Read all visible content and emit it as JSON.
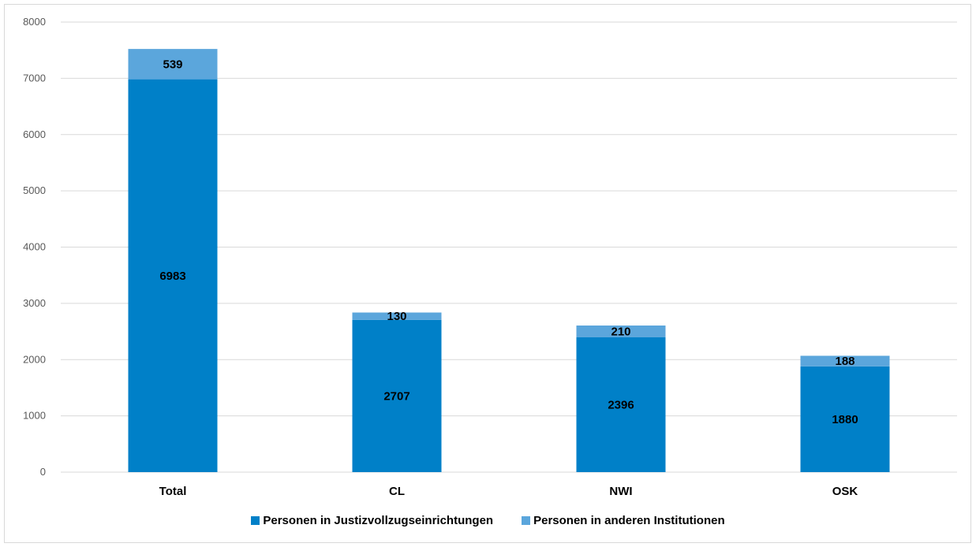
{
  "chart_data": {
    "type": "bar",
    "stacked": true,
    "categories": [
      "Total",
      "CL",
      "NWI",
      "OSK"
    ],
    "series": [
      {
        "name": "Personen in Justizvollzugseinrichtungen",
        "values": [
          6983,
          2707,
          2396,
          1880
        ],
        "color": "#0080c8"
      },
      {
        "name": "Personen in anderen Institutionen",
        "values": [
          539,
          130,
          210,
          188
        ],
        "color": "#5ba6dc"
      }
    ],
    "title": "",
    "xlabel": "",
    "ylabel": "",
    "ylim": [
      0,
      8000
    ],
    "yticks": [
      0,
      1000,
      2000,
      3000,
      4000,
      5000,
      6000,
      7000,
      8000
    ],
    "grid": true,
    "legend_position": "bottom"
  }
}
